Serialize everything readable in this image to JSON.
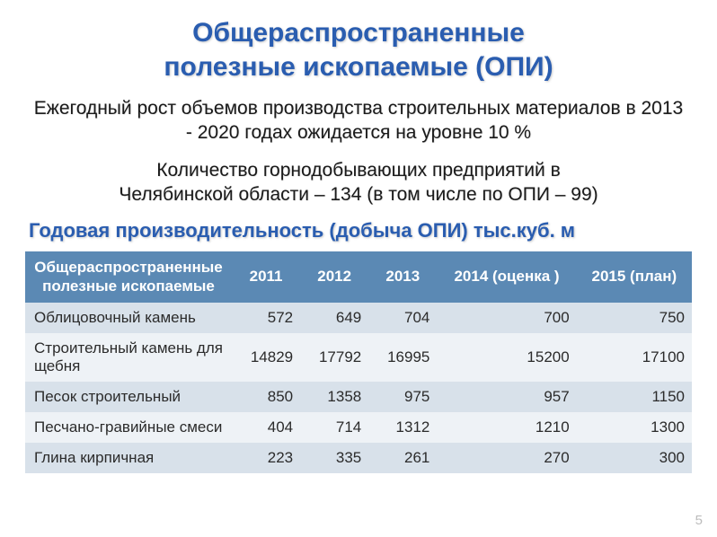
{
  "title": {
    "line1": "Общераспространенные",
    "line2": "полезные ископаемые (ОПИ)"
  },
  "subtitle1": "Ежегодный рост объемов производства строительных материалов в 2013 - 2020 годах ожидается на уровне 10 %",
  "subtitle2_line1": "Количество горнодобывающих предприятий в",
  "subtitle2_line2": "Челябинской области – 134 (в том числе по ОПИ – 99)",
  "tableTitle": "Годовая производительность (добыча ОПИ) тыс.куб. м",
  "table": {
    "type": "table",
    "header_bg": "#5b89b4",
    "header_color": "#ffffff",
    "row_odd_bg": "#d8e1ea",
    "row_even_bg": "#eef2f6",
    "text_color": "#2b2b2b",
    "fontsize": 17,
    "columns": [
      "Общераспространенные полезные ископаемые",
      "2011",
      "2012",
      "2013",
      "2014 (оценка )",
      "2015 (план)"
    ],
    "rows": [
      [
        "Облицовочный камень",
        "572",
        "649",
        "704",
        "700",
        "750"
      ],
      [
        "Строительный камень для щебня",
        "14829",
        "17792",
        "16995",
        "15200",
        "17100"
      ],
      [
        "Песок строительный",
        "850",
        "1358",
        "975",
        "957",
        "1150"
      ],
      [
        "Песчано-гравийные смеси",
        "404",
        "714",
        "1312",
        "1210",
        "1300"
      ],
      [
        "Глина кирпичная",
        "223",
        "335",
        "261",
        "270",
        "300"
      ]
    ]
  },
  "pageNumber": "5",
  "colors": {
    "title_blue": "#2a5db0",
    "body_text": "#1a1a1a",
    "pagenum": "#bcbcbc",
    "background": "#ffffff"
  }
}
